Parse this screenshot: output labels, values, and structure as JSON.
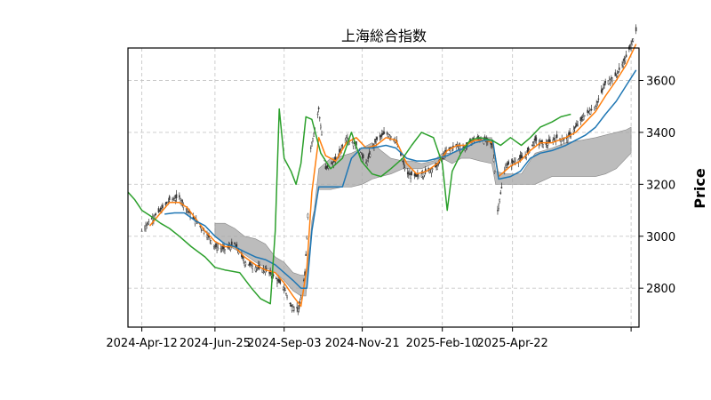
{
  "chart_data": {
    "type": "line",
    "title": "上海総合指数",
    "xlabel": "",
    "ylabel": "Price",
    "y_axis_side": "right",
    "ylim": [
      2650,
      3725
    ],
    "yticks": [
      2800,
      3000,
      3200,
      3400,
      3600
    ],
    "x_date_range": [
      "2024-03-29",
      "2025-08-28"
    ],
    "xticks": [
      {
        "date": "2024-04-12",
        "label": "2024-Apr-12"
      },
      {
        "date": "2024-06-25",
        "label": "2024-Jun-25"
      },
      {
        "date": "2024-09-03",
        "label": "2024-Sep-03"
      },
      {
        "date": "2024-11-21",
        "label": "2024-Nov-21"
      },
      {
        "date": "2025-02-10",
        "label": "2025-Feb-10"
      },
      {
        "date": "2025-04-22",
        "label": "2025-Apr-22"
      },
      {
        "date": "2025-08-20",
        "label": ""
      }
    ],
    "grid": true,
    "colors": {
      "candles": "#333333",
      "tenkan": "#ff7f0e",
      "kijun": "#1f77b4",
      "chikou": "#2ca02c",
      "cloud": "#a6a6a6"
    },
    "price_close": [
      [
        "2024-04-12",
        3020
      ],
      [
        "2024-04-20",
        3060
      ],
      [
        "2024-05-01",
        3100
      ],
      [
        "2024-05-10",
        3140
      ],
      [
        "2024-05-20",
        3150
      ],
      [
        "2024-05-28",
        3100
      ],
      [
        "2024-06-05",
        3060
      ],
      [
        "2024-06-15",
        3020
      ],
      [
        "2024-06-25",
        2960
      ],
      [
        "2024-07-05",
        2950
      ],
      [
        "2024-07-15",
        2970
      ],
      [
        "2024-07-25",
        2900
      ],
      [
        "2024-08-05",
        2880
      ],
      [
        "2024-08-15",
        2870
      ],
      [
        "2024-08-25",
        2840
      ],
      [
        "2024-09-03",
        2800
      ],
      [
        "2024-09-10",
        2730
      ],
      [
        "2024-09-18",
        2720
      ],
      [
        "2024-09-24",
        2850
      ],
      [
        "2024-09-26",
        3000
      ],
      [
        "2024-09-30",
        3340
      ],
      [
        "2024-10-08",
        3490
      ],
      [
        "2024-10-15",
        3260
      ],
      [
        "2024-10-25",
        3290
      ],
      [
        "2024-11-05",
        3380
      ],
      [
        "2024-11-15",
        3350
      ],
      [
        "2024-11-25",
        3280
      ],
      [
        "2024-12-05",
        3370
      ],
      [
        "2024-12-15",
        3400
      ],
      [
        "2024-12-25",
        3370
      ],
      [
        "2025-01-05",
        3240
      ],
      [
        "2025-01-15",
        3230
      ],
      [
        "2025-01-25",
        3250
      ],
      [
        "2025-02-05",
        3270
      ],
      [
        "2025-02-15",
        3330
      ],
      [
        "2025-02-25",
        3350
      ],
      [
        "2025-03-05",
        3340
      ],
      [
        "2025-03-15",
        3380
      ],
      [
        "2025-03-25",
        3370
      ],
      [
        "2025-04-02",
        3350
      ],
      [
        "2025-04-07",
        3100
      ],
      [
        "2025-04-15",
        3270
      ],
      [
        "2025-04-25",
        3290
      ],
      [
        "2025-05-05",
        3310
      ],
      [
        "2025-05-15",
        3370
      ],
      [
        "2025-05-25",
        3350
      ],
      [
        "2025-06-05",
        3380
      ],
      [
        "2025-06-15",
        3370
      ],
      [
        "2025-06-25",
        3420
      ],
      [
        "2025-07-05",
        3470
      ],
      [
        "2025-07-15",
        3500
      ],
      [
        "2025-07-25",
        3590
      ],
      [
        "2025-08-05",
        3620
      ],
      [
        "2025-08-15",
        3690
      ],
      [
        "2025-08-25",
        3790
      ]
    ],
    "series": [
      {
        "key": "tenkan",
        "points": [
          [
            "2024-04-20",
            3040
          ],
          [
            "2024-05-01",
            3090
          ],
          [
            "2024-05-10",
            3130
          ],
          [
            "2024-05-20",
            3130
          ],
          [
            "2024-05-28",
            3110
          ],
          [
            "2024-06-05",
            3070
          ],
          [
            "2024-06-15",
            3020
          ],
          [
            "2024-06-25",
            2980
          ],
          [
            "2024-07-05",
            2960
          ],
          [
            "2024-07-15",
            2960
          ],
          [
            "2024-07-25",
            2920
          ],
          [
            "2024-08-05",
            2890
          ],
          [
            "2024-08-15",
            2870
          ],
          [
            "2024-08-25",
            2860
          ],
          [
            "2024-09-03",
            2820
          ],
          [
            "2024-09-12",
            2770
          ],
          [
            "2024-09-20",
            2730
          ],
          [
            "2024-09-26",
            2880
          ],
          [
            "2024-10-01",
            3170
          ],
          [
            "2024-10-08",
            3380
          ],
          [
            "2024-10-15",
            3310
          ],
          [
            "2024-10-25",
            3290
          ],
          [
            "2024-11-05",
            3360
          ],
          [
            "2024-11-15",
            3380
          ],
          [
            "2024-11-25",
            3340
          ],
          [
            "2024-12-05",
            3350
          ],
          [
            "2024-12-15",
            3380
          ],
          [
            "2024-12-25",
            3370
          ],
          [
            "2025-01-05",
            3280
          ],
          [
            "2025-01-15",
            3240
          ],
          [
            "2025-01-25",
            3250
          ],
          [
            "2025-02-05",
            3280
          ],
          [
            "2025-02-15",
            3330
          ],
          [
            "2025-02-25",
            3350
          ],
          [
            "2025-03-05",
            3350
          ],
          [
            "2025-03-15",
            3370
          ],
          [
            "2025-03-25",
            3370
          ],
          [
            "2025-04-02",
            3360
          ],
          [
            "2025-04-08",
            3230
          ],
          [
            "2025-04-20",
            3270
          ],
          [
            "2025-04-30",
            3290
          ],
          [
            "2025-05-10",
            3330
          ],
          [
            "2025-05-20",
            3360
          ],
          [
            "2025-06-01",
            3360
          ],
          [
            "2025-06-15",
            3380
          ],
          [
            "2025-06-25",
            3400
          ],
          [
            "2025-07-05",
            3440
          ],
          [
            "2025-07-15",
            3480
          ],
          [
            "2025-07-25",
            3540
          ],
          [
            "2025-08-05",
            3600
          ],
          [
            "2025-08-15",
            3660
          ],
          [
            "2025-08-25",
            3740
          ]
        ]
      },
      {
        "key": "kijun",
        "points": [
          [
            "2024-05-05",
            3085
          ],
          [
            "2024-05-15",
            3090
          ],
          [
            "2024-05-25",
            3090
          ],
          [
            "2024-06-05",
            3060
          ],
          [
            "2024-06-15",
            3040
          ],
          [
            "2024-06-25",
            3000
          ],
          [
            "2024-07-05",
            2970
          ],
          [
            "2024-07-15",
            2960
          ],
          [
            "2024-07-25",
            2940
          ],
          [
            "2024-08-05",
            2920
          ],
          [
            "2024-08-15",
            2910
          ],
          [
            "2024-08-25",
            2890
          ],
          [
            "2024-09-03",
            2860
          ],
          [
            "2024-09-12",
            2830
          ],
          [
            "2024-09-20",
            2800
          ],
          [
            "2024-09-26",
            2800
          ],
          [
            "2024-10-01",
            3020
          ],
          [
            "2024-10-08",
            3190
          ],
          [
            "2024-10-20",
            3190
          ],
          [
            "2024-11-01",
            3190
          ],
          [
            "2024-11-10",
            3300
          ],
          [
            "2024-11-20",
            3340
          ],
          [
            "2024-12-01",
            3340
          ],
          [
            "2024-12-15",
            3350
          ],
          [
            "2024-12-25",
            3340
          ],
          [
            "2025-01-05",
            3300
          ],
          [
            "2025-01-15",
            3290
          ],
          [
            "2025-01-25",
            3290
          ],
          [
            "2025-02-05",
            3300
          ],
          [
            "2025-02-15",
            3310
          ],
          [
            "2025-02-25",
            3330
          ],
          [
            "2025-03-05",
            3340
          ],
          [
            "2025-03-15",
            3360
          ],
          [
            "2025-03-25",
            3370
          ],
          [
            "2025-04-02",
            3370
          ],
          [
            "2025-04-08",
            3220
          ],
          [
            "2025-04-20",
            3230
          ],
          [
            "2025-04-30",
            3250
          ],
          [
            "2025-05-10",
            3300
          ],
          [
            "2025-05-20",
            3320
          ],
          [
            "2025-06-01",
            3330
          ],
          [
            "2025-06-15",
            3350
          ],
          [
            "2025-06-25",
            3370
          ],
          [
            "2025-07-05",
            3390
          ],
          [
            "2025-07-15",
            3420
          ],
          [
            "2025-07-25",
            3470
          ],
          [
            "2025-08-05",
            3520
          ],
          [
            "2025-08-15",
            3580
          ],
          [
            "2025-08-25",
            3640
          ]
        ]
      },
      {
        "key": "chikou",
        "points": [
          [
            "2024-03-29",
            3170
          ],
          [
            "2024-04-05",
            3140
          ],
          [
            "2024-04-12",
            3100
          ],
          [
            "2024-04-20",
            3080
          ],
          [
            "2024-05-01",
            3050
          ],
          [
            "2024-05-10",
            3030
          ],
          [
            "2024-05-20",
            3000
          ],
          [
            "2024-06-01",
            2960
          ],
          [
            "2024-06-15",
            2920
          ],
          [
            "2024-06-25",
            2880
          ],
          [
            "2024-07-05",
            2870
          ],
          [
            "2024-07-20",
            2860
          ],
          [
            "2024-08-01",
            2800
          ],
          [
            "2024-08-10",
            2760
          ],
          [
            "2024-08-20",
            2740
          ],
          [
            "2024-08-25",
            3020
          ],
          [
            "2024-08-29",
            3490
          ],
          [
            "2024-09-03",
            3300
          ],
          [
            "2024-09-10",
            3250
          ],
          [
            "2024-09-15",
            3200
          ],
          [
            "2024-09-20",
            3280
          ],
          [
            "2024-09-25",
            3460
          ],
          [
            "2024-10-01",
            3450
          ],
          [
            "2024-10-10",
            3320
          ],
          [
            "2024-10-20",
            3260
          ],
          [
            "2024-11-01",
            3300
          ],
          [
            "2024-11-10",
            3400
          ],
          [
            "2024-11-20",
            3290
          ],
          [
            "2024-12-01",
            3240
          ],
          [
            "2024-12-10",
            3230
          ],
          [
            "2024-12-20",
            3260
          ],
          [
            "2025-01-01",
            3300
          ],
          [
            "2025-01-10",
            3350
          ],
          [
            "2025-01-20",
            3400
          ],
          [
            "2025-02-01",
            3380
          ],
          [
            "2025-02-10",
            3280
          ],
          [
            "2025-02-15",
            3100
          ],
          [
            "2025-02-20",
            3250
          ],
          [
            "2025-03-01",
            3320
          ],
          [
            "2025-03-10",
            3370
          ],
          [
            "2025-03-20",
            3380
          ],
          [
            "2025-04-01",
            3370
          ],
          [
            "2025-04-10",
            3350
          ],
          [
            "2025-04-20",
            3380
          ],
          [
            "2025-05-01",
            3350
          ],
          [
            "2025-05-10",
            3380
          ],
          [
            "2025-05-20",
            3420
          ],
          [
            "2025-06-01",
            3440
          ],
          [
            "2025-06-10",
            3460
          ],
          [
            "2025-06-20",
            3470
          ]
        ]
      }
    ],
    "cloud": {
      "upper": [
        [
          "2024-06-25",
          3050
        ],
        [
          "2024-07-05",
          3050
        ],
        [
          "2024-07-15",
          3030
        ],
        [
          "2024-07-25",
          3000
        ],
        [
          "2024-08-05",
          2990
        ],
        [
          "2024-08-15",
          2970
        ],
        [
          "2024-08-25",
          2920
        ],
        [
          "2024-09-03",
          2900
        ],
        [
          "2024-09-12",
          2860
        ],
        [
          "2024-09-20",
          2850
        ],
        [
          "2024-09-25",
          2850
        ],
        [
          "2024-10-01",
          3020
        ],
        [
          "2024-10-08",
          3260
        ],
        [
          "2024-10-20",
          3300
        ],
        [
          "2024-11-01",
          3310
        ],
        [
          "2024-11-10",
          3320
        ],
        [
          "2024-11-21",
          3340
        ],
        [
          "2024-12-01",
          3360
        ],
        [
          "2024-12-10",
          3330
        ],
        [
          "2024-12-20",
          3300
        ],
        [
          "2025-01-01",
          3290
        ],
        [
          "2025-01-10",
          3290
        ],
        [
          "2025-01-20",
          3280
        ],
        [
          "2025-02-01",
          3290
        ],
        [
          "2025-02-10",
          3320
        ],
        [
          "2025-02-20",
          3320
        ],
        [
          "2025-03-01",
          3330
        ],
        [
          "2025-03-10",
          3360
        ],
        [
          "2025-03-20",
          3380
        ],
        [
          "2025-04-01",
          3380
        ],
        [
          "2025-04-05",
          3250
        ],
        [
          "2025-04-15",
          3240
        ],
        [
          "2025-05-01",
          3240
        ],
        [
          "2025-05-15",
          3320
        ],
        [
          "2025-06-01",
          3340
        ],
        [
          "2025-06-15",
          3360
        ],
        [
          "2025-07-01",
          3370
        ],
        [
          "2025-07-15",
          3380
        ],
        [
          "2025-07-25",
          3390
        ],
        [
          "2025-08-05",
          3400
        ],
        [
          "2025-08-15",
          3410
        ],
        [
          "2025-08-20",
          3420
        ]
      ],
      "lower": [
        [
          "2024-06-25",
          3000
        ],
        [
          "2024-07-05",
          2970
        ],
        [
          "2024-07-15",
          2950
        ],
        [
          "2024-07-25",
          2930
        ],
        [
          "2024-08-05",
          2900
        ],
        [
          "2024-08-15",
          2880
        ],
        [
          "2024-08-25",
          2860
        ],
        [
          "2024-09-03",
          2830
        ],
        [
          "2024-09-12",
          2790
        ],
        [
          "2024-09-20",
          2770
        ],
        [
          "2024-09-25",
          2770
        ],
        [
          "2024-10-01",
          3060
        ],
        [
          "2024-10-08",
          3180
        ],
        [
          "2024-10-20",
          3180
        ],
        [
          "2024-11-01",
          3190
        ],
        [
          "2024-11-10",
          3190
        ],
        [
          "2024-11-21",
          3200
        ],
        [
          "2024-12-01",
          3220
        ],
        [
          "2024-12-10",
          3230
        ],
        [
          "2024-12-20",
          3240
        ],
        [
          "2025-01-01",
          3260
        ],
        [
          "2025-01-10",
          3260
        ],
        [
          "2025-01-20",
          3260
        ],
        [
          "2025-02-01",
          3280
        ],
        [
          "2025-02-10",
          3300
        ],
        [
          "2025-02-20",
          3280
        ],
        [
          "2025-03-01",
          3300
        ],
        [
          "2025-03-10",
          3300
        ],
        [
          "2025-03-20",
          3290
        ],
        [
          "2025-04-01",
          3280
        ],
        [
          "2025-04-05",
          3200
        ],
        [
          "2025-04-15",
          3200
        ],
        [
          "2025-05-01",
          3200
        ],
        [
          "2025-05-15",
          3200
        ],
        [
          "2025-06-01",
          3230
        ],
        [
          "2025-06-15",
          3230
        ],
        [
          "2025-07-01",
          3230
        ],
        [
          "2025-07-15",
          3230
        ],
        [
          "2025-07-25",
          3240
        ],
        [
          "2025-08-05",
          3260
        ],
        [
          "2025-08-15",
          3300
        ],
        [
          "2025-08-20",
          3320
        ]
      ]
    }
  }
}
